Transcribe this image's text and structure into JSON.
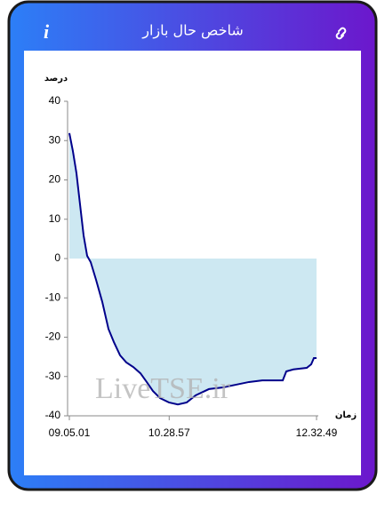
{
  "header": {
    "info_icon": "i"
  },
  "chart_data": {
    "type": "line",
    "title": "شاخص حال بازار",
    "y_label": "درصد",
    "x_label": "زمان",
    "watermark": "LiveTSE.ir",
    "x": [
      32701,
      32880,
      33060,
      33239,
      33419,
      33598,
      33777,
      34047,
      34360,
      34674,
      34943,
      35257,
      35571,
      35930,
      36289,
      36603,
      36917,
      37276,
      37724,
      38173,
      38621,
      39070,
      39742,
      40415,
      41088,
      41761,
      42433,
      43106,
      43465,
      43644,
      44003,
      44676,
      44900,
      45035,
      45169
    ],
    "series": [
      {
        "name": "شاخص",
        "color": "#00008b",
        "fill": "#cde8f2",
        "values": [
          31.9,
          27.3,
          21.7,
          13.8,
          5.9,
          0.7,
          -0.9,
          -5.4,
          -11,
          -17.9,
          -21.2,
          -24.6,
          -26.4,
          -27.6,
          -29.2,
          -31.4,
          -33.7,
          -35.5,
          -36.6,
          -37.1,
          -36.6,
          -34.8,
          -33.2,
          -32.8,
          -32.1,
          -31.4,
          -31.0,
          -31.0,
          -31.0,
          -28.7,
          -28.2,
          -27.8,
          -26.9,
          -25.3,
          -25.3
        ]
      }
    ],
    "xlim": [
      32701,
      45169
    ],
    "xticks": [
      {
        "value": 32701,
        "label": "09.05.01"
      },
      {
        "value": 37737,
        "label": "10.28.57"
      },
      {
        "value": 45169,
        "label": "12.32.49"
      }
    ],
    "ylim": [
      -40,
      40
    ],
    "yticks": [
      -40,
      -30,
      -20,
      -10,
      0,
      10,
      20,
      30,
      40
    ]
  }
}
